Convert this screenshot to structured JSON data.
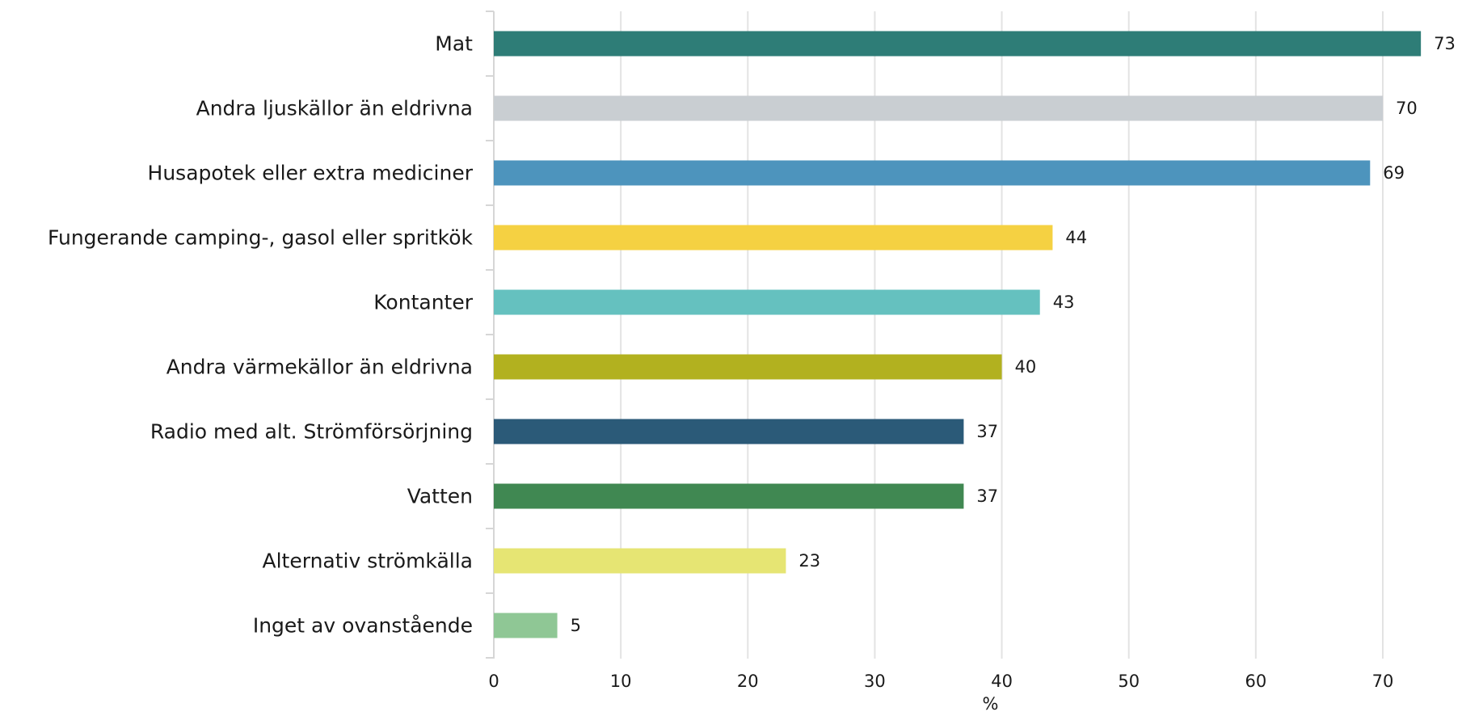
{
  "chart_data": {
    "type": "bar",
    "orientation": "horizontal",
    "categories": [
      "Mat",
      "Andra ljuskällor än eldrivna",
      "Husapotek eller extra mediciner",
      "Fungerande camping-, gasol eller spritkök",
      "Kontanter",
      "Andra värmekällor än eldrivna",
      "Radio med alt. Strömförsörjning",
      "Vatten",
      "Alternativ strömkälla",
      "Inget av ovanstående"
    ],
    "values": [
      73,
      70,
      69,
      44,
      43,
      40,
      37,
      37,
      23,
      5
    ],
    "value_labels": [
      "73",
      "70",
      "69",
      "44",
      "43",
      "40",
      "37",
      "37",
      "23",
      "5"
    ],
    "colors": [
      "#2e7d77",
      "#c9ced2",
      "#4d94bd",
      "#f5d142",
      "#65c1bf",
      "#b2b11f",
      "#2b5a78",
      "#408852",
      "#e6e573",
      "#8fc795"
    ],
    "xticks": [
      0,
      10,
      20,
      30,
      40,
      50,
      60,
      70
    ],
    "xtick_labels": [
      "0",
      "10",
      "20",
      "30",
      "40",
      "50",
      "60",
      "70"
    ],
    "xlim": [
      0,
      75
    ],
    "xlabel": "%",
    "grid": "vertical",
    "gridline_color": "#e3e3e3"
  }
}
